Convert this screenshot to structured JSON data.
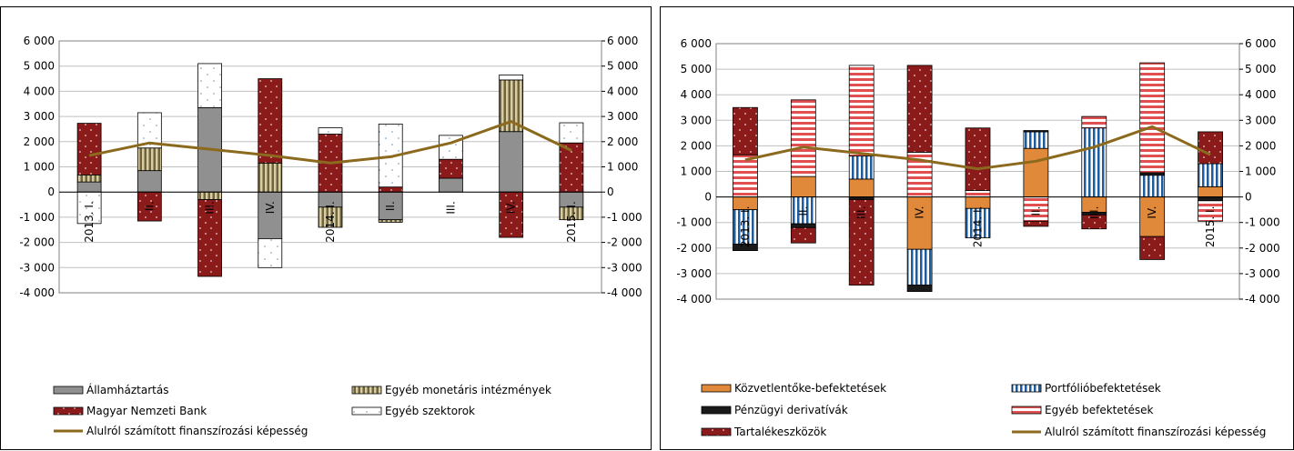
{
  "colors": {
    "allam": "#909090",
    "egyeb_monetaris": "#D8CCA0",
    "mnb": "#8B1A1A",
    "egyeb_szektor": "#FFFFFF",
    "kozvetlen": "#E0893A",
    "portfolio": "#1E5C9E",
    "derivativ": "#1A1A1A",
    "egyeb_befekt": "#E05050",
    "tartalek": "#8B1A1A",
    "line": "#8B6A1E",
    "grid": "#C0C0C0"
  },
  "chart_data": [
    {
      "type": "bar",
      "stacked": true,
      "categories": [
        "2013. I.",
        "II.",
        "III.",
        "IV.",
        "2014. I.",
        "II.",
        "III.",
        "IV.",
        "2015. I."
      ],
      "ylim": [
        -4000,
        6000
      ],
      "yticks": [
        6000,
        5000,
        4000,
        3000,
        2000,
        1000,
        0,
        -1000,
        -2000,
        -3000,
        -4000
      ],
      "ytick_labels": [
        "6 000",
        "5 000",
        "4 000",
        "3 000",
        "2 000",
        "1 000",
        "0",
        "-1 000",
        "-2 000",
        "-3 000",
        "-4 000"
      ],
      "grid": true,
      "legend_position": "bottom",
      "series": [
        {
          "name": "Államháztartás",
          "key": "allam",
          "pattern": "solid",
          "values": [
            400,
            850,
            3350,
            -1850,
            -600,
            -1100,
            550,
            2400,
            -600
          ]
        },
        {
          "name": "Egyéb monetáris intézmények",
          "key": "egyeb_monetaris",
          "pattern": "vstripe",
          "values": [
            280,
            900,
            -300,
            1150,
            -800,
            -100,
            0,
            2050,
            -500
          ]
        },
        {
          "name": "Magyar Nemzeti Bank",
          "key": "mnb",
          "pattern": "dots",
          "values": [
            2050,
            -1150,
            -3050,
            3350,
            2300,
            200,
            750,
            -1800,
            1950
          ]
        },
        {
          "name": "Egyéb szektorok",
          "key": "egyeb_szektor",
          "pattern": "sparse",
          "values": [
            -1250,
            1400,
            1750,
            -1150,
            250,
            2500,
            950,
            200,
            800
          ]
        }
      ],
      "line": {
        "name": "Alulról számított finanszírozási képesség",
        "values": [
          1450,
          1950,
          1700,
          1450,
          1150,
          1400,
          1950,
          2800,
          1650
        ]
      }
    },
    {
      "type": "bar",
      "stacked": true,
      "categories": [
        "2013. I.",
        "II.",
        "III.",
        "IV.",
        "2014. I.",
        "II.",
        "III.",
        "IV.",
        "2015. I."
      ],
      "ylim": [
        -4000,
        6000
      ],
      "yticks": [
        6000,
        5000,
        4000,
        3000,
        2000,
        1000,
        0,
        -1000,
        -2000,
        -3000,
        -4000
      ],
      "ytick_labels": [
        "6 000",
        "5 000",
        "4 000",
        "3 000",
        "2 000",
        "1 000",
        "0",
        "-1 000",
        "-2 000",
        "-3 000",
        "-4 000"
      ],
      "grid": true,
      "legend_position": "bottom",
      "series": [
        {
          "name": "Közvetlentőke-befektetések",
          "key": "kozvetlen",
          "pattern": "solid",
          "values": [
            -500,
            800,
            700,
            -2050,
            -450,
            1900,
            -600,
            -1550,
            400
          ]
        },
        {
          "name": "Portfólióbefektetések",
          "key": "portfolio",
          "pattern": "vstripe",
          "values": [
            -1350,
            -1050,
            900,
            -1400,
            -1150,
            650,
            2700,
            850,
            900
          ]
        },
        {
          "name": "Pénzügyi derivatívák",
          "key": "derivativ",
          "pattern": "solid",
          "values": [
            -250,
            -150,
            -100,
            -250,
            0,
            50,
            -100,
            100,
            -150
          ]
        },
        {
          "name": "Egyéb befektetések",
          "key": "egyeb_befekt",
          "pattern": "hstripe",
          "values": [
            1650,
            3000,
            3550,
            1750,
            250,
            -950,
            450,
            4300,
            -800
          ]
        },
        {
          "name": "Tartalékeszközök",
          "key": "tartalek",
          "pattern": "dots",
          "values": [
            1850,
            -600,
            -3350,
            3400,
            2450,
            -200,
            -550,
            -900,
            1250
          ]
        }
      ],
      "line": {
        "name": "Alulról számított finanszírozási képesség",
        "values": [
          1450,
          1950,
          1700,
          1450,
          1100,
          1400,
          1950,
          2750,
          1650
        ]
      }
    }
  ]
}
